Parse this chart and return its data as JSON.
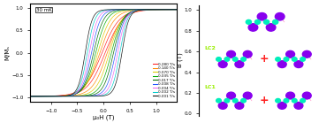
{
  "title_left": "30 mK",
  "xlabel": "μ₀H (T)",
  "ylabel": "M/Mₛ",
  "xlim": [
    -1.4,
    1.4
  ],
  "ylim": [
    -1.1,
    1.1
  ],
  "yticks": [
    -1,
    -0.5,
    0,
    0.5,
    1
  ],
  "xticks": [
    -1,
    -0.5,
    0,
    0.5,
    1
  ],
  "scan_rates": [
    0.28,
    0.14,
    0.07,
    0.035,
    0.017,
    0.008,
    0.004,
    0.002,
    0.001
  ],
  "colors": [
    "#FF2222",
    "#FF8800",
    "#DDCC00",
    "#00AA00",
    "#006600",
    "#2255FF",
    "#EE66EE",
    "#00CCCC",
    "#111111"
  ],
  "right_ylabel": "B (T)",
  "right_yticks": [
    0.0,
    0.2,
    0.4,
    0.6,
    0.8,
    1.0
  ],
  "lc1_label": "LC1",
  "lc2_label": "LC2",
  "label_color": "#99EE00",
  "plus_color": "#FF2222",
  "purple": "#8800EE",
  "cyan": "#00EEBB",
  "bond_green": "#33CC33",
  "bond_blue": "#5566EE",
  "bond_pink": "#FF99CC",
  "bond_vert": "#8888CC"
}
